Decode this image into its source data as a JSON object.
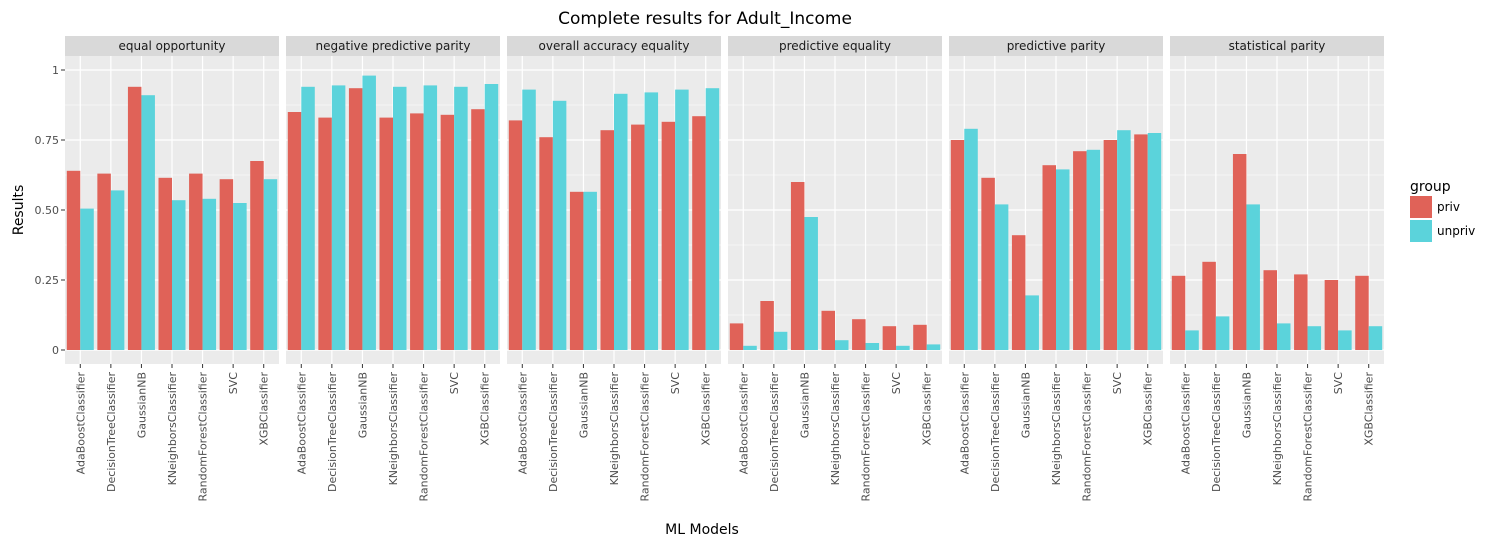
{
  "chart_data": {
    "type": "bar",
    "title": "Complete results for Adult_Income",
    "xlabel": "ML Models",
    "ylabel": "Results",
    "ylim": [
      -0.05,
      1.05
    ],
    "yticks": [
      0,
      0.25,
      0.5,
      0.75,
      1
    ],
    "ytick_labels": [
      "0",
      "0.25",
      "0.50",
      "0.75",
      "1"
    ],
    "grid": true,
    "legend_position": "right",
    "legend_title": "group",
    "categories": [
      "AdaBoostClassifier",
      "DecisionTreeClassifier",
      "GaussianNB",
      "KNeighborsClassifier",
      "RandomForestClassifier",
      "SVC",
      "XGBClassifier"
    ],
    "series_names": [
      "priv",
      "unpriv"
    ],
    "colors": {
      "priv": "#E06258",
      "unpriv": "#5BD3DB",
      "panel_bg": "#EBEBEB",
      "strip_bg": "#D9D9D9",
      "grid": "#FFFFFF"
    },
    "facets": [
      {
        "name": "equal opportunity",
        "priv": [
          0.64,
          0.63,
          0.94,
          0.615,
          0.63,
          0.61,
          0.675
        ],
        "unpriv": [
          0.505,
          0.57,
          0.91,
          0.535,
          0.54,
          0.525,
          0.61
        ]
      },
      {
        "name": "negative predictive parity",
        "priv": [
          0.85,
          0.83,
          0.935,
          0.83,
          0.845,
          0.84,
          0.86
        ],
        "unpriv": [
          0.94,
          0.945,
          0.98,
          0.94,
          0.945,
          0.94,
          0.95
        ]
      },
      {
        "name": "overall accuracy equality",
        "priv": [
          0.82,
          0.76,
          0.565,
          0.785,
          0.805,
          0.815,
          0.835
        ],
        "unpriv": [
          0.93,
          0.89,
          0.565,
          0.915,
          0.92,
          0.93,
          0.935
        ]
      },
      {
        "name": "predictive equality",
        "priv": [
          0.095,
          0.175,
          0.6,
          0.14,
          0.11,
          0.085,
          0.09
        ],
        "unpriv": [
          0.015,
          0.065,
          0.475,
          0.035,
          0.025,
          0.015,
          0.02
        ]
      },
      {
        "name": "predictive parity",
        "priv": [
          0.75,
          0.615,
          0.41,
          0.66,
          0.71,
          0.75,
          0.77
        ],
        "unpriv": [
          0.79,
          0.52,
          0.195,
          0.645,
          0.715,
          0.785,
          0.775
        ]
      },
      {
        "name": "statistical parity",
        "priv": [
          0.265,
          0.315,
          0.7,
          0.285,
          0.27,
          0.25,
          0.265
        ],
        "unpriv": [
          0.07,
          0.12,
          0.52,
          0.095,
          0.085,
          0.07,
          0.085
        ]
      }
    ]
  }
}
